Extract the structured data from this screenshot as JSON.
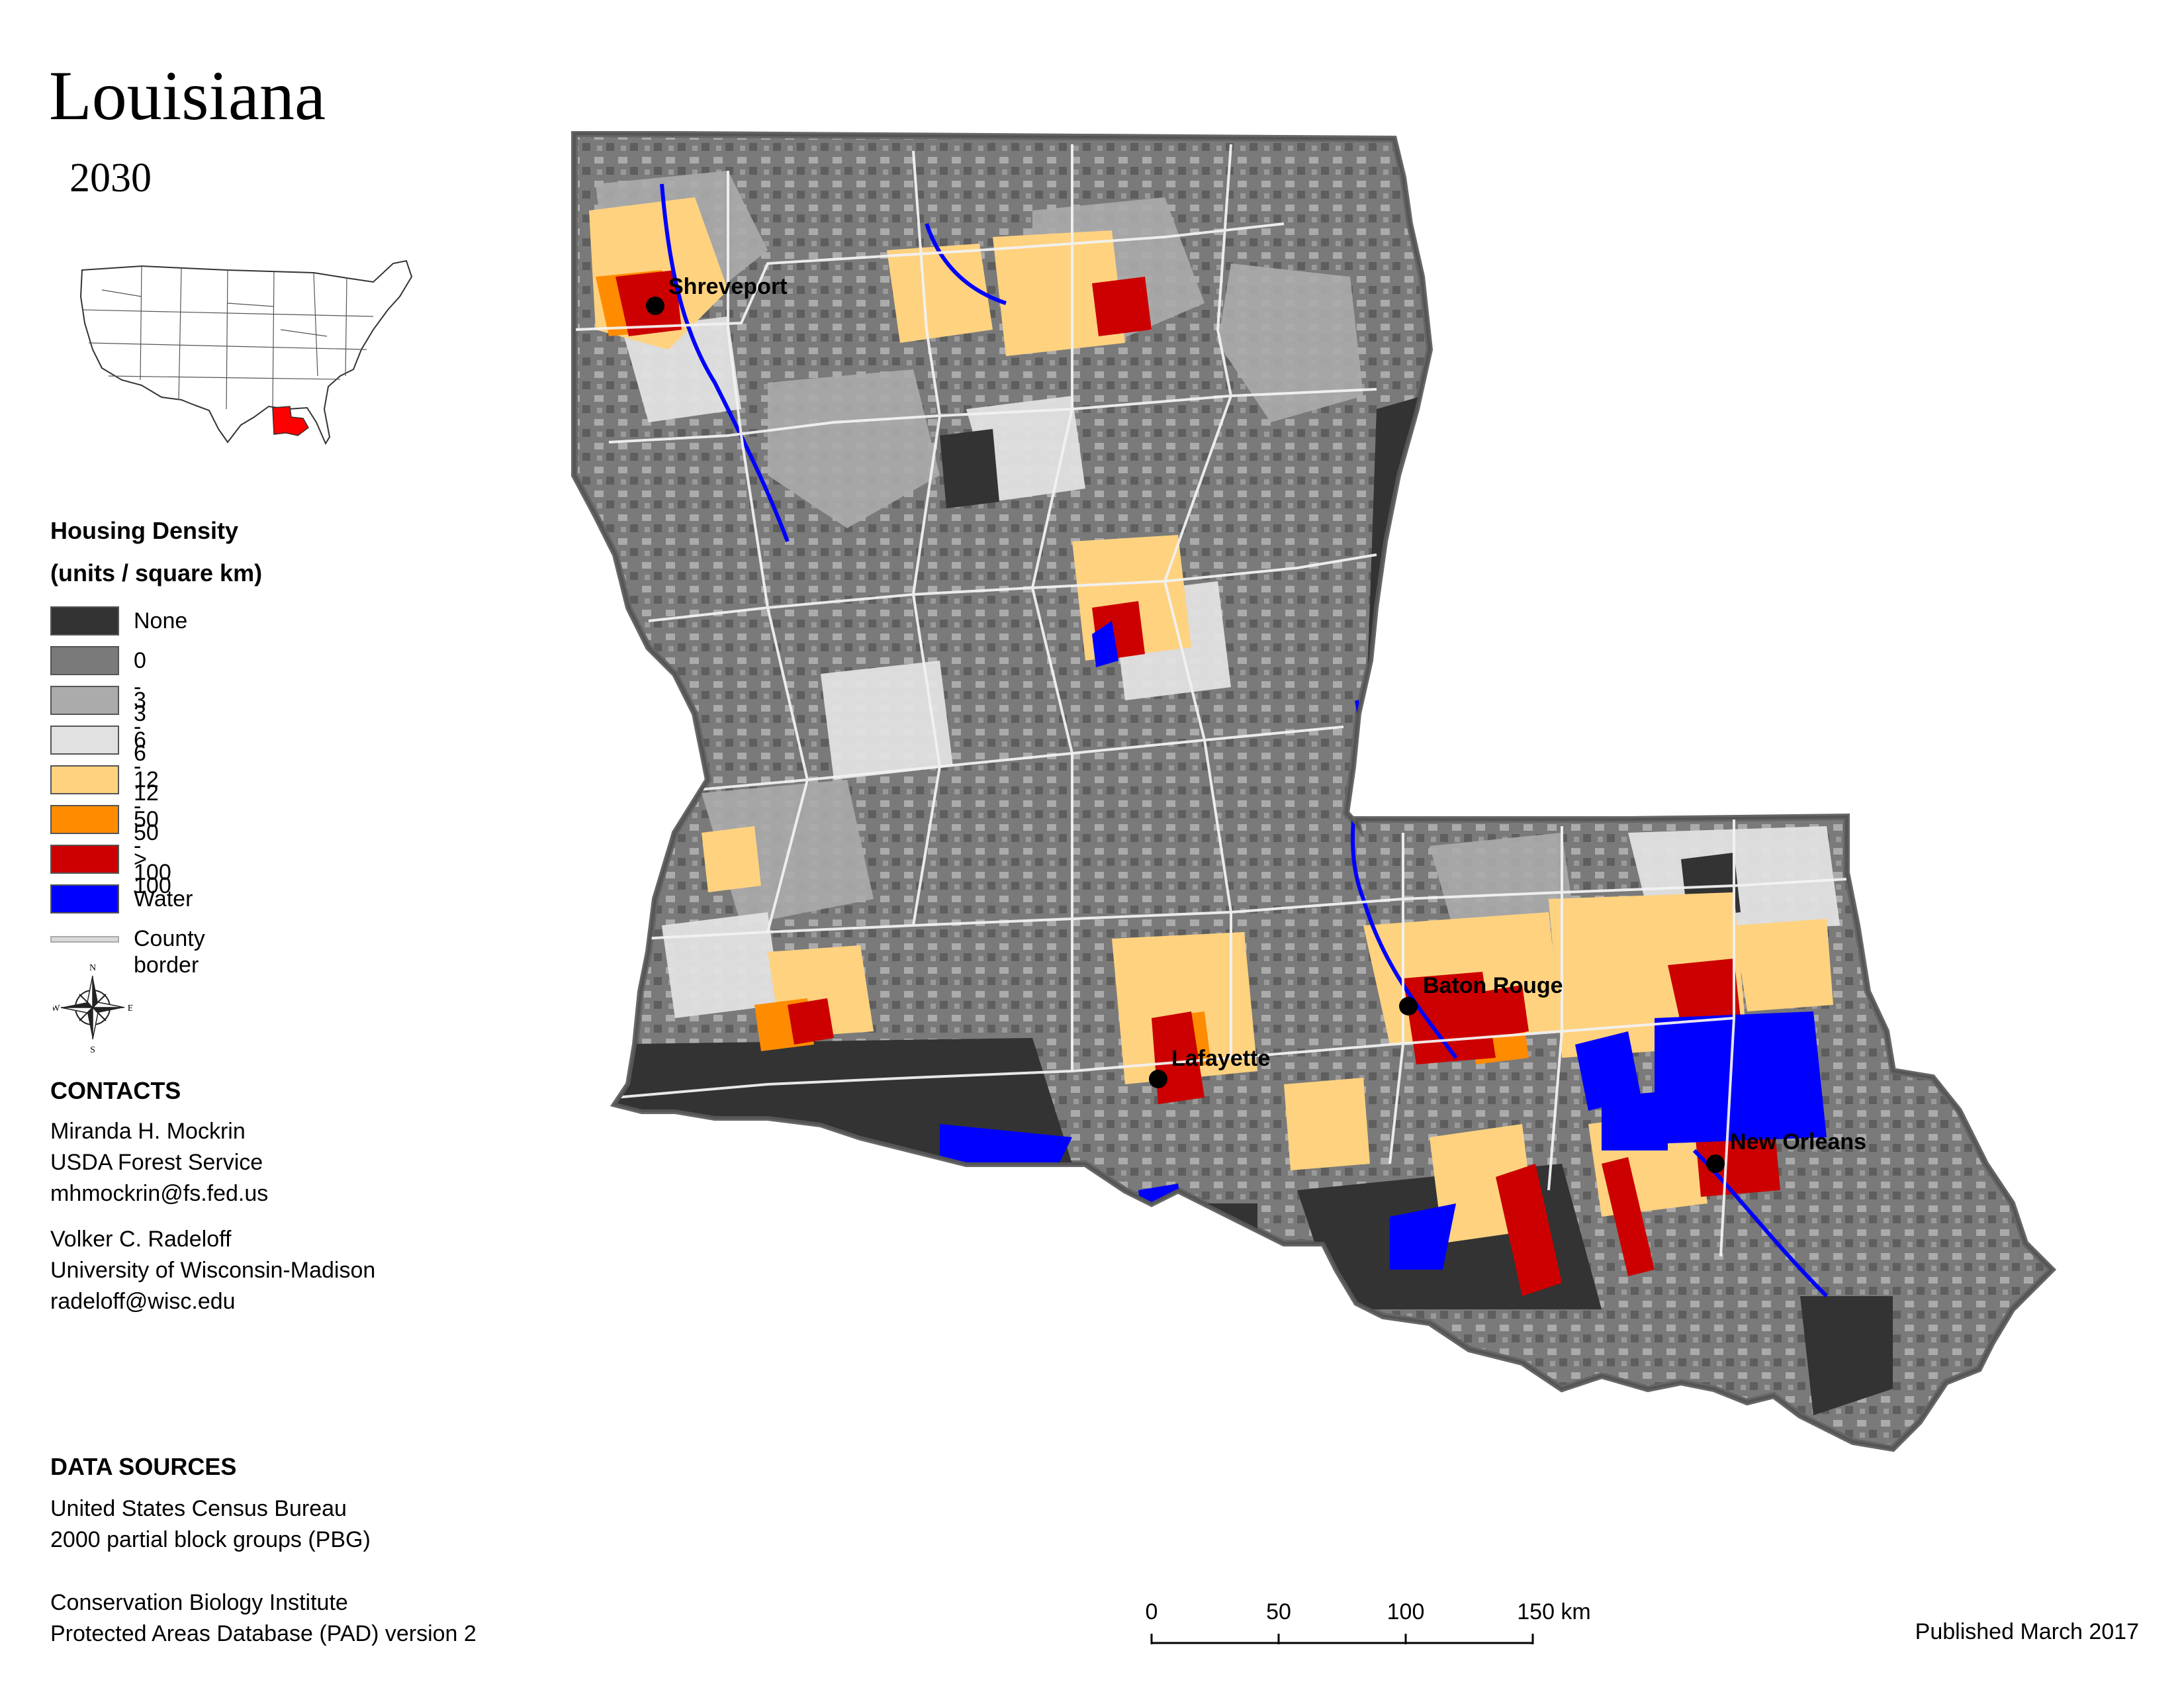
{
  "title": "Louisiana",
  "year": "2030",
  "legend": {
    "title": "Housing Density",
    "subtitle": "(units / square km)",
    "items": [
      {
        "label": "None",
        "color": "#333333"
      },
      {
        "label": "0 - 3",
        "color": "#7a7a7a"
      },
      {
        "label": "3 - 6",
        "color": "#ababab"
      },
      {
        "label": "6 - 12",
        "color": "#e1e1e1"
      },
      {
        "label": "12 - 50",
        "color": "#ffd280"
      },
      {
        "label": "50 - 100",
        "color": "#ff8c00"
      },
      {
        "label": "> 100",
        "color": "#cc0000"
      },
      {
        "label": "Water",
        "color": "#0000ff"
      },
      {
        "label": "County border",
        "color": "#d9d9d9"
      }
    ]
  },
  "compass": {
    "n": "N",
    "s": "S",
    "e": "E",
    "w": "W"
  },
  "contacts": {
    "title": "CONTACTS",
    "lines": [
      "Miranda H. Mockrin",
      "USDA Forest Service",
      "mhmockrin@fs.fed.us",
      "Volker C. Radeloff",
      "University of Wisconsin-Madison",
      "radeloff@wisc.edu"
    ]
  },
  "data_sources": {
    "title": "DATA SOURCES",
    "lines": [
      "United States Census Bureau",
      "2000 partial block groups (PBG)",
      "Conservation Biology Institute",
      "Protected Areas Database (PAD) version 2"
    ]
  },
  "scale": {
    "ticks": [
      "0",
      "50",
      "100",
      "150 km"
    ]
  },
  "published": "Published March 2017",
  "cities": [
    {
      "name": "Shreveport"
    },
    {
      "name": "Baton Rouge"
    },
    {
      "name": "Lafayette"
    },
    {
      "name": "New Orleans"
    }
  ],
  "inset": {
    "highlight_color": "#ff0000"
  }
}
